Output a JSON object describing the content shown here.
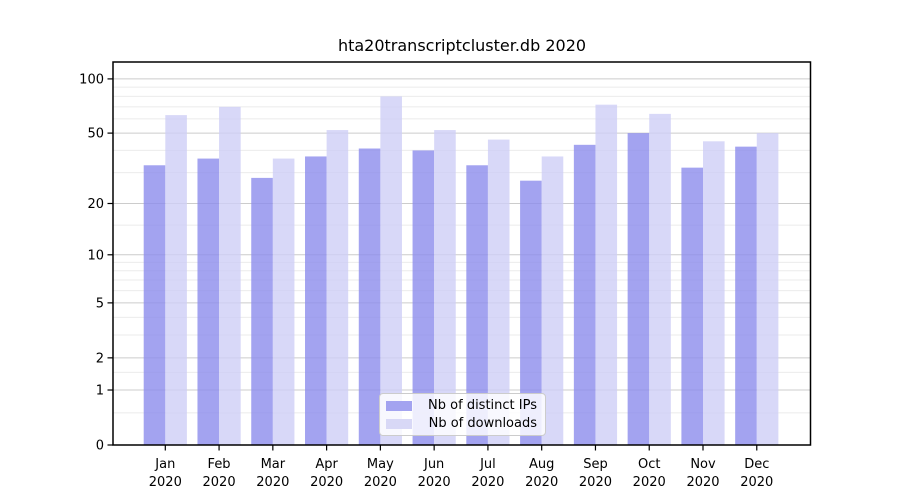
{
  "title": "hta20transcriptcluster.db 2020",
  "chart_data": {
    "type": "bar",
    "title": "hta20transcriptcluster.db 2020",
    "scale": "log10(1+y)",
    "grid": true,
    "legend_position": "lower center",
    "xlabel": "",
    "ylabel": "",
    "ylim": [
      0,
      124
    ],
    "yticks": [
      0,
      1,
      2,
      5,
      10,
      20,
      50,
      100
    ],
    "yticks_minor": [
      0.5,
      1.5,
      3,
      4,
      6,
      7,
      8,
      9,
      15,
      30,
      40,
      60,
      70,
      80,
      90
    ],
    "categories": [
      "Jan",
      "Feb",
      "Mar",
      "Apr",
      "May",
      "Jun",
      "Jul",
      "Aug",
      "Sep",
      "Oct",
      "Nov",
      "Dec"
    ],
    "category_sublabel": "2020",
    "series": [
      {
        "name": "Nb of distinct IPs",
        "color": "#a3a3f0",
        "fill_rgba": "rgba(140,140,236,0.8)",
        "values": [
          33,
          36,
          28,
          37,
          41,
          40,
          33,
          27,
          43,
          50,
          32,
          42
        ]
      },
      {
        "name": "Nb of downloads",
        "color": "#d8d8f6",
        "fill_rgba": "rgba(206,206,246,0.8)",
        "values": [
          63,
          70,
          36,
          52,
          80,
          52,
          46,
          37,
          72,
          64,
          45,
          50
        ]
      }
    ],
    "colors": {
      "grid_major": "#cccccc",
      "grid_minor": "#ebebeb",
      "axis_frame": "#000000",
      "tick_text": "#000000"
    }
  }
}
